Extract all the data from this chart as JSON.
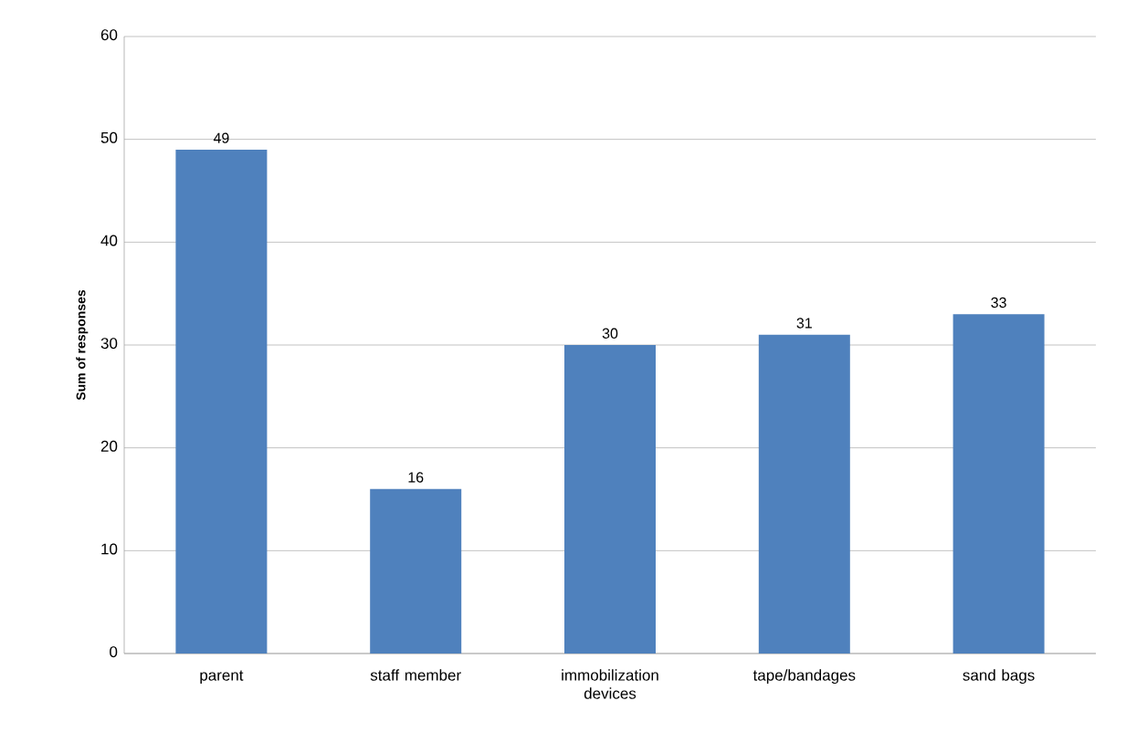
{
  "chart_data": {
    "type": "bar",
    "ylabel": "Sum of responses",
    "categories": [
      "parent",
      "staff member",
      "immobilization devices",
      "tape/bandages",
      "sand bags"
    ],
    "values": [
      49,
      16,
      30,
      31,
      33
    ],
    "color": "#4f81bd",
    "ylim": [
      0,
      60
    ],
    "yticks": [
      0,
      10,
      20,
      30,
      40,
      50,
      60
    ],
    "grid": "y",
    "data_labels": true
  }
}
